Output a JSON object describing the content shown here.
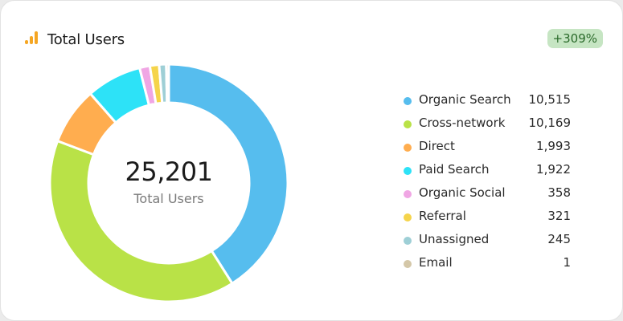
{
  "header": {
    "title": "Total Users",
    "change_badge": "+309%",
    "icon": "bar-chart-icon",
    "icon_color": "#f5a623"
  },
  "chart_data": {
    "type": "pie",
    "variant": "donut",
    "center_value": "25,201",
    "center_label": "Total Users",
    "legend_position": "right",
    "slices": [
      {
        "label": "Organic Search",
        "value": 10515,
        "display": "10,515",
        "color": "#56bdee"
      },
      {
        "label": "Cross-network",
        "value": 10169,
        "display": "10,169",
        "color": "#b9e247"
      },
      {
        "label": "Direct",
        "value": 1993,
        "display": "1,993",
        "color": "#ffad4f"
      },
      {
        "label": "Paid Search",
        "value": 1922,
        "display": "1,922",
        "color": "#2de2f7"
      },
      {
        "label": "Organic Social",
        "value": 358,
        "display": "358",
        "color": "#f0a6e4"
      },
      {
        "label": "Referral",
        "value": 321,
        "display": "321",
        "color": "#f5d44b"
      },
      {
        "label": "Unassigned",
        "value": 245,
        "display": "245",
        "color": "#9ecfd6"
      },
      {
        "label": "Email",
        "value": 1,
        "display": "1",
        "color": "#d4c7a8"
      }
    ]
  }
}
